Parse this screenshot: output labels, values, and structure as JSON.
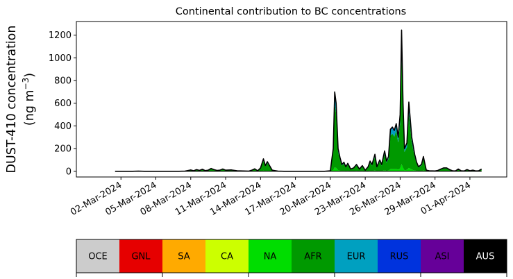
{
  "chart_data": {
    "type": "area",
    "title": "Continental contribution to BC concentrations",
    "ylabel_line1": "DUST-410 concentration",
    "ylabel_line2": "(ng m",
    "ylabel_unit_sup": "−3",
    "ylabel_close": ")",
    "xlabel": "",
    "ylim": [
      -50,
      1320
    ],
    "yticks": [
      0,
      200,
      400,
      600,
      800,
      1000,
      1200
    ],
    "xticks": [
      "02-Mar-2024",
      "05-Mar-2024",
      "08-Mar-2024",
      "11-Mar-2024",
      "14-Mar-2024",
      "17-Mar-2024",
      "20-Mar-2024",
      "23-Mar-2024",
      "26-Mar-2024",
      "29-Mar-2024",
      "01-Apr-2024"
    ],
    "legend": {
      "placement": "bottom",
      "entries": [
        {
          "label": "OCE",
          "color": "#cccccc",
          "text_color": "#000000"
        },
        {
          "label": "GNL",
          "color": "#e60000",
          "text_color": "#000000"
        },
        {
          "label": "SA",
          "color": "#ffaa00",
          "text_color": "#000000"
        },
        {
          "label": "CA",
          "color": "#ccff00",
          "text_color": "#000000"
        },
        {
          "label": "NA",
          "color": "#00dd00",
          "text_color": "#000000"
        },
        {
          "label": "AFR",
          "color": "#009900",
          "text_color": "#000000"
        },
        {
          "label": "EUR",
          "color": "#00a0c0",
          "text_color": "#000000"
        },
        {
          "label": "RUS",
          "color": "#0033dd",
          "text_color": "#000000"
        },
        {
          "label": "ASI",
          "color": "#660099",
          "text_color": "#000000"
        },
        {
          "label": "AUS",
          "color": "#000000",
          "text_color": "#ffffff"
        }
      ]
    },
    "series_total": [
      [
        "2024-03-01T12:00",
        0
      ],
      [
        "2024-03-02T00:00",
        0
      ],
      [
        "2024-03-02T12:00",
        0
      ],
      [
        "2024-03-03T00:00",
        0
      ],
      [
        "2024-03-03T12:00",
        2
      ],
      [
        "2024-03-04T00:00",
        0
      ],
      [
        "2024-03-04T12:00",
        0
      ],
      [
        "2024-03-05T00:00",
        0
      ],
      [
        "2024-03-06T00:00",
        0
      ],
      [
        "2024-03-07T00:00",
        0
      ],
      [
        "2024-03-07T12:00",
        2
      ],
      [
        "2024-03-08T00:00",
        12
      ],
      [
        "2024-03-08T06:00",
        5
      ],
      [
        "2024-03-08T12:00",
        15
      ],
      [
        "2024-03-08T18:00",
        8
      ],
      [
        "2024-03-09T00:00",
        18
      ],
      [
        "2024-03-09T06:00",
        6
      ],
      [
        "2024-03-09T12:00",
        10
      ],
      [
        "2024-03-09T18:00",
        25
      ],
      [
        "2024-03-10T00:00",
        15
      ],
      [
        "2024-03-10T06:00",
        8
      ],
      [
        "2024-03-10T12:00",
        10
      ],
      [
        "2024-03-10T18:00",
        20
      ],
      [
        "2024-03-11T00:00",
        10
      ],
      [
        "2024-03-11T12:00",
        12
      ],
      [
        "2024-03-12T00:00",
        5
      ],
      [
        "2024-03-12T12:00",
        3
      ],
      [
        "2024-03-13T00:00",
        2
      ],
      [
        "2024-03-13T06:00",
        10
      ],
      [
        "2024-03-13T12:00",
        22
      ],
      [
        "2024-03-13T18:00",
        5
      ],
      [
        "2024-03-14T00:00",
        30
      ],
      [
        "2024-03-14T06:00",
        110
      ],
      [
        "2024-03-14T10:00",
        50
      ],
      [
        "2024-03-14T14:00",
        85
      ],
      [
        "2024-03-14T20:00",
        40
      ],
      [
        "2024-03-15T00:00",
        10
      ],
      [
        "2024-03-15T12:00",
        2
      ],
      [
        "2024-03-16T00:00",
        0
      ],
      [
        "2024-03-17T00:00",
        0
      ],
      [
        "2024-03-18T00:00",
        0
      ],
      [
        "2024-03-19T00:00",
        0
      ],
      [
        "2024-03-19T12:00",
        0
      ],
      [
        "2024-03-20T00:00",
        5
      ],
      [
        "2024-03-20T06:00",
        200
      ],
      [
        "2024-03-20T09:00",
        700
      ],
      [
        "2024-03-20T12:00",
        600
      ],
      [
        "2024-03-20T16:00",
        200
      ],
      [
        "2024-03-20T20:00",
        120
      ],
      [
        "2024-03-21T00:00",
        60
      ],
      [
        "2024-03-21T04:00",
        80
      ],
      [
        "2024-03-21T08:00",
        40
      ],
      [
        "2024-03-21T12:00",
        70
      ],
      [
        "2024-03-21T18:00",
        20
      ],
      [
        "2024-03-22T00:00",
        30
      ],
      [
        "2024-03-22T06:00",
        60
      ],
      [
        "2024-03-22T12:00",
        20
      ],
      [
        "2024-03-22T18:00",
        50
      ],
      [
        "2024-03-23T00:00",
        10
      ],
      [
        "2024-03-23T06:00",
        40
      ],
      [
        "2024-03-23T10:00",
        90
      ],
      [
        "2024-03-23T14:00",
        60
      ],
      [
        "2024-03-23T20:00",
        150
      ],
      [
        "2024-03-24T00:00",
        40
      ],
      [
        "2024-03-24T06:00",
        100
      ],
      [
        "2024-03-24T10:00",
        60
      ],
      [
        "2024-03-24T16:00",
        180
      ],
      [
        "2024-03-24T20:00",
        90
      ],
      [
        "2024-03-25T00:00",
        130
      ],
      [
        "2024-03-25T04:00",
        370
      ],
      [
        "2024-03-25T08:00",
        390
      ],
      [
        "2024-03-25T12:00",
        360
      ],
      [
        "2024-03-25T16:00",
        420
      ],
      [
        "2024-03-25T20:00",
        300
      ],
      [
        "2024-03-26T00:00",
        500
      ],
      [
        "2024-03-26T03:00",
        1245
      ],
      [
        "2024-03-26T06:00",
        600
      ],
      [
        "2024-03-26T09:00",
        200
      ],
      [
        "2024-03-26T14:00",
        250
      ],
      [
        "2024-03-26T18:00",
        610
      ],
      [
        "2024-03-27T00:00",
        300
      ],
      [
        "2024-03-27T06:00",
        150
      ],
      [
        "2024-03-27T10:00",
        80
      ],
      [
        "2024-03-27T14:00",
        40
      ],
      [
        "2024-03-27T20:00",
        60
      ],
      [
        "2024-03-28T00:00",
        130
      ],
      [
        "2024-03-28T06:00",
        10
      ],
      [
        "2024-03-28T12:00",
        5
      ],
      [
        "2024-03-29T00:00",
        3
      ],
      [
        "2024-03-29T06:00",
        8
      ],
      [
        "2024-03-29T12:00",
        20
      ],
      [
        "2024-03-29T18:00",
        30
      ],
      [
        "2024-03-30T00:00",
        30
      ],
      [
        "2024-03-30T06:00",
        15
      ],
      [
        "2024-03-30T12:00",
        5
      ],
      [
        "2024-03-30T18:00",
        3
      ],
      [
        "2024-03-31T00:00",
        20
      ],
      [
        "2024-03-31T06:00",
        5
      ],
      [
        "2024-03-31T12:00",
        3
      ],
      [
        "2024-03-31T18:00",
        15
      ],
      [
        "2024-04-01T00:00",
        5
      ],
      [
        "2024-04-01T06:00",
        10
      ],
      [
        "2024-04-01T12:00",
        3
      ],
      [
        "2024-04-01T18:00",
        5
      ],
      [
        "2024-04-02T00:00",
        20
      ]
    ],
    "layer_share": [
      {
        "color": "#00dd00",
        "share": 0.05
      },
      {
        "color": "#009900",
        "share": 0.8
      },
      {
        "color": "#00a0c0",
        "share": 0.12
      },
      {
        "color": "#0033dd",
        "share": 0.03
      }
    ]
  }
}
